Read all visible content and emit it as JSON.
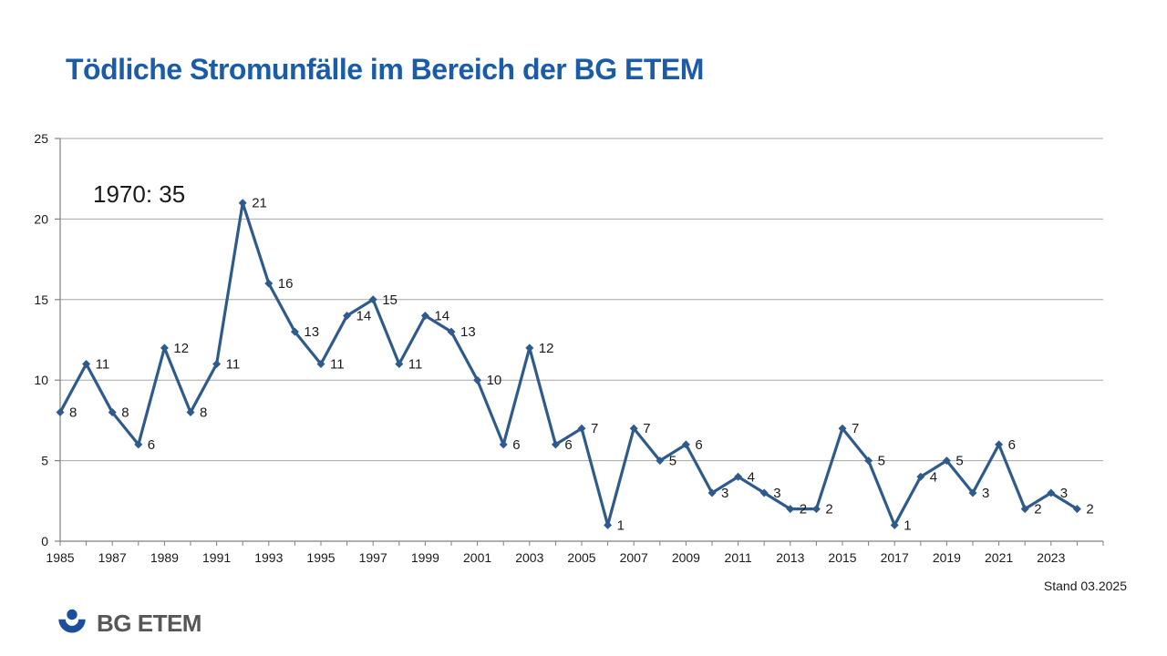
{
  "title": "Tödliche Stromunfälle im Bereich der BG ETEM",
  "status_note": "Stand 03.2025",
  "logo": {
    "text": "BG ETEM"
  },
  "colors": {
    "title": "#1a5ca8",
    "line": "#2e5a8c",
    "grid": "#a6a6a6",
    "axis": "#808080",
    "label": "#1a1a1a",
    "logo_blue": "#1b4f9c",
    "logo_gray": "#575756"
  },
  "chart_data": {
    "type": "line",
    "title": "Tödliche Stromunfälle im Bereich der BG ETEM",
    "annotation": "1970: 35",
    "x": [
      1985,
      1986,
      1987,
      1988,
      1989,
      1990,
      1991,
      1992,
      1993,
      1994,
      1995,
      1996,
      1997,
      1998,
      1999,
      2000,
      2001,
      2002,
      2003,
      2004,
      2005,
      2006,
      2007,
      2008,
      2009,
      2010,
      2011,
      2012,
      2013,
      2014,
      2015,
      2016,
      2017,
      2018,
      2019,
      2020,
      2021,
      2022,
      2023,
      2024
    ],
    "values": [
      8,
      11,
      8,
      6,
      12,
      8,
      11,
      21,
      16,
      13,
      11,
      14,
      15,
      11,
      14,
      13,
      10,
      6,
      12,
      6,
      7,
      1,
      7,
      5,
      6,
      3,
      4,
      3,
      2,
      2,
      7,
      5,
      1,
      4,
      5,
      3,
      6,
      2,
      3,
      2
    ],
    "xlabel": "",
    "ylabel": "",
    "ylim": [
      0,
      25
    ],
    "ytick_step": 5,
    "xtick_label_step": 2,
    "grid": true,
    "legend": "none",
    "marker": "diamond",
    "data_labels": "right"
  }
}
